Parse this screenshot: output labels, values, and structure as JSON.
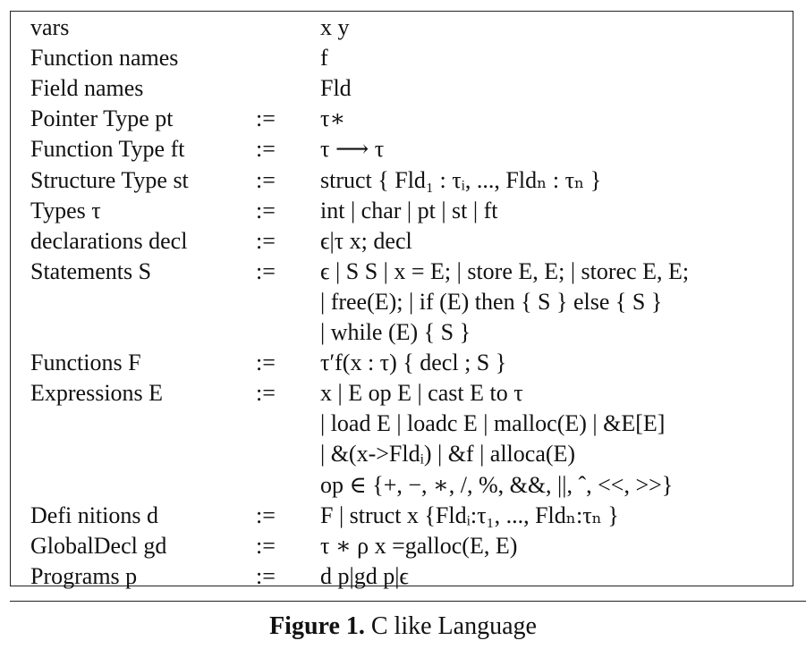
{
  "rows": [
    {
      "lhs": "vars",
      "op": "",
      "rhs": "x  y"
    },
    {
      "lhs": "Function names",
      "op": "",
      "rhs": "f"
    },
    {
      "lhs": "Field names",
      "op": "",
      "rhs": "Fld"
    },
    {
      "lhs": "Pointer Type pt",
      "op": ":=",
      "rhs": "τ∗"
    },
    {
      "lhs": "Function Type ft",
      "op": ":=",
      "rhs": "τ ⟶ τ"
    },
    {
      "lhs": "Structure Type st",
      "op": ":=",
      "rhs": "struct { Fld₁ : τᵢ, ..., Fldₙ : τₙ }"
    },
    {
      "lhs": "Types τ",
      "op": ":=",
      "rhs": "int | char | pt | st | ft"
    },
    {
      "lhs": "declarations decl",
      "op": ":=",
      "rhs": "ϵ|τ x; decl"
    },
    {
      "lhs": "Statements S",
      "op": ":=",
      "rhs": "ϵ | S S | x = E; | store E, E; | storec E, E;"
    },
    {
      "lhs": "",
      "op": "",
      "rhs": "| free(E); | if (E) then { S } else { S }"
    },
    {
      "lhs": "",
      "op": "",
      "rhs": "| while (E) { S }"
    },
    {
      "lhs": "Functions F",
      "op": ":=",
      "rhs": "τ′f(x : τ) { decl ; S }"
    },
    {
      "lhs": "Expressions E",
      "op": ":=",
      "rhs": "x | E op E | cast E to τ"
    },
    {
      "lhs": "",
      "op": "",
      "rhs": "| load E | loadc E | malloc(E) | &E[E]"
    },
    {
      "lhs": "",
      "op": "",
      "rhs": "| &(x->Fldᵢ) | &f | alloca(E)"
    },
    {
      "lhs": "",
      "op": "",
      "rhs": "op ∈ {+, −, ∗, /, %, &&, ||, ˆ, <<, >>}"
    },
    {
      "lhs": "Defi nitions d",
      "op": ":=",
      "rhs": "F | struct x {Fldᵢ:τ₁, ..., Fldₙ:τₙ }"
    },
    {
      "lhs": "GlobalDecl gd",
      "op": ":=",
      "rhs": "τ ∗ ρ x =galloc(E, E)"
    },
    {
      "lhs": "Programs p",
      "op": ":=",
      "rhs": "d  p|gd  p|ϵ"
    }
  ],
  "caption": {
    "label": "Figure 1.",
    "text": "C like Language"
  }
}
